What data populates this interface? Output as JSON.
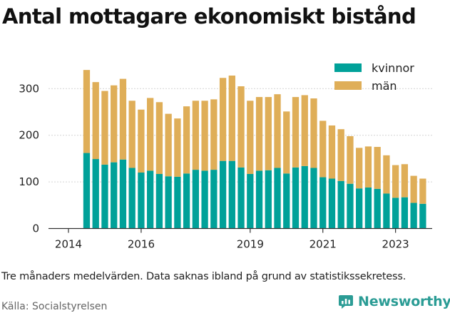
{
  "title": "Antal mottagare ekonomiskt bistånd",
  "note": "Tre månaders medelvärden. Data saknas ibland på grund av statistikssekretess.",
  "source": "Källa: Socialstyrelsen",
  "brand": {
    "name": "Newsworthy",
    "color": "#2b9c95"
  },
  "chart_data": {
    "type": "bar",
    "stacked": true,
    "legend_position": "top-right",
    "grid": "horizontal",
    "ylim": [
      0,
      350
    ],
    "yticks": [
      0,
      100,
      200,
      300
    ],
    "xticks": [
      "2014",
      "2016",
      "2019",
      "2021",
      "2023"
    ],
    "x": [
      2014.5,
      2014.75,
      2015.0,
      2015.25,
      2015.5,
      2015.75,
      2016.0,
      2016.25,
      2016.5,
      2016.75,
      2017.0,
      2017.25,
      2017.5,
      2017.75,
      2018.0,
      2018.25,
      2018.5,
      2018.75,
      2019.0,
      2019.25,
      2019.5,
      2019.75,
      2020.0,
      2020.25,
      2020.5,
      2020.75,
      2021.0,
      2021.25,
      2021.5,
      2021.75,
      2022.0,
      2022.25,
      2022.5,
      2022.75,
      2023.0,
      2023.25,
      2023.5,
      2023.75
    ],
    "series": [
      {
        "name": "kvinnor",
        "color": "#00a199",
        "values": [
          162,
          149,
          137,
          142,
          148,
          130,
          120,
          124,
          117,
          112,
          111,
          118,
          126,
          124,
          126,
          145,
          145,
          131,
          117,
          124,
          125,
          130,
          118,
          131,
          134,
          130,
          110,
          107,
          102,
          96,
          86,
          88,
          85,
          75,
          66,
          67,
          55,
          53
        ]
      },
      {
        "name": "män",
        "color": "#dfae58",
        "values": [
          178,
          165,
          158,
          165,
          173,
          144,
          135,
          156,
          154,
          134,
          125,
          144,
          148,
          150,
          151,
          178,
          183,
          174,
          157,
          158,
          157,
          158,
          133,
          151,
          152,
          149,
          121,
          114,
          111,
          102,
          87,
          88,
          90,
          82,
          70,
          71,
          58,
          54
        ]
      }
    ]
  }
}
